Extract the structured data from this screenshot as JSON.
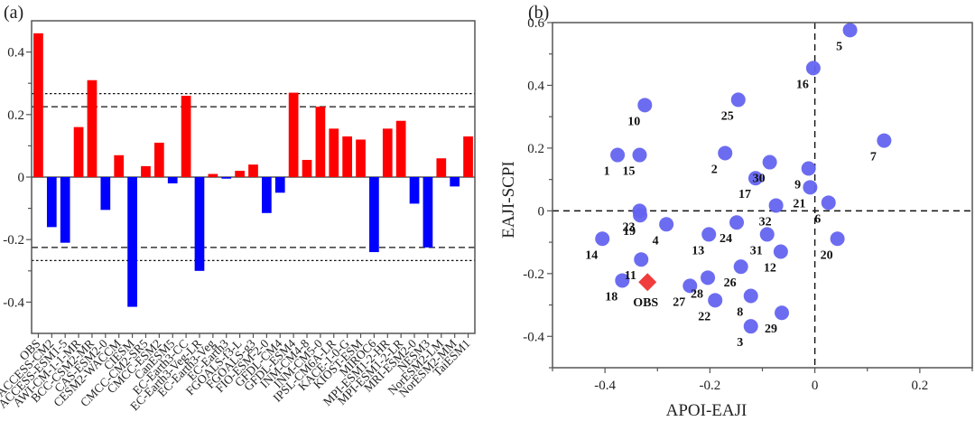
{
  "chart_data": [
    {
      "type": "bar",
      "panel_label": "(a)",
      "title": "",
      "xlabel": "",
      "ylabel": "",
      "ylim": [
        -0.5,
        0.5
      ],
      "yticks": [
        -0.4,
        -0.2,
        0,
        0.2,
        0.4
      ],
      "ytick_labels": [
        "-0.4",
        "-0.2",
        "0",
        "0.2",
        "0.4"
      ],
      "positive_color": "#ff0000",
      "negative_color": "#0000ff",
      "categories": [
        "OBS",
        "ACCESS-CM2",
        "ACCESS-ESM1-5",
        "AWI-CM-1-1-MR",
        "BCC-CSM2-MR",
        "CAS-ESM2-0",
        "CESM2-WACCM",
        "CIESM",
        "CMCC-CM2-SR5",
        "CMCC-ESM2",
        "CanESM5",
        "EC-Earth3-CC",
        "EC-Earth3-Veg-LR",
        "EC-Earth3-Veg",
        "EC-Earth3",
        "FGOALS-f3-L",
        "FGOALS-g3",
        "FIO-ESM-2-0",
        "GFDL-CM4",
        "GFDL-ESM4",
        "INM-CM4-8",
        "INM-CM5-0",
        "IPSL-CM6A-LR",
        "KACE-1-0-G",
        "KIOST-ESM",
        "MIROC6",
        "MPI-ESM1-2-HR",
        "MPI-ESM1-2-LR",
        "MRI-ESM2-0",
        "NESM3",
        "NorESM2-LM",
        "NorESM2-MM",
        "TaiESM1"
      ],
      "values": [
        0.46,
        -0.16,
        -0.21,
        0.16,
        0.31,
        -0.105,
        0.07,
        -0.415,
        0.035,
        0.11,
        -0.02,
        0.26,
        -0.3,
        0.01,
        -0.005,
        0.02,
        0.04,
        -0.115,
        -0.05,
        0.27,
        0.055,
        0.225,
        0.155,
        0.13,
        0.12,
        -0.24,
        0.155,
        0.18,
        -0.085,
        -0.225,
        0.06,
        -0.03,
        0.13
      ],
      "reference_lines": [
        {
          "style": "dashed",
          "value": 0.225
        },
        {
          "style": "dotted",
          "value": 0.267
        },
        {
          "style": "dashed",
          "value": -0.225
        },
        {
          "style": "dotted",
          "value": -0.267
        }
      ]
    },
    {
      "type": "scatter",
      "panel_label": "(b)",
      "title": "",
      "xlabel": "APOI-EAJI",
      "ylabel": "EAJI-SCPI",
      "xlim": [
        -0.5,
        0.3
      ],
      "ylim": [
        -0.5,
        0.6
      ],
      "xticks": [
        -0.4,
        -0.2,
        0,
        0.2
      ],
      "xtick_labels": [
        "-0.4",
        "-0.2",
        "0",
        "0.2"
      ],
      "yticks": [
        -0.4,
        -0.2,
        0,
        0.2,
        0.4,
        0.6
      ],
      "ytick_labels": [
        "-0.4",
        "-0.2",
        "0",
        "0.2",
        "0.4",
        "0.6"
      ],
      "point_color": "#6464f0",
      "obs_color": "#f03c3c",
      "reference_lines": [
        {
          "axis": "x",
          "value": 0,
          "style": "dashed"
        },
        {
          "axis": "y",
          "value": 0,
          "style": "dashed"
        }
      ],
      "points": [
        {
          "label": "1",
          "x": -0.376,
          "y": 0.178
        },
        {
          "label": "2",
          "x": -0.171,
          "y": 0.184
        },
        {
          "label": "3",
          "x": -0.122,
          "y": -0.368
        },
        {
          "label": "4",
          "x": -0.283,
          "y": -0.043
        },
        {
          "label": "5",
          "x": 0.067,
          "y": 0.576
        },
        {
          "label": "6",
          "x": 0.026,
          "y": 0.026
        },
        {
          "label": "7",
          "x": 0.132,
          "y": 0.224
        },
        {
          "label": "8",
          "x": -0.122,
          "y": -0.271
        },
        {
          "label": "9",
          "x": -0.012,
          "y": 0.135
        },
        {
          "label": "10",
          "x": -0.324,
          "y": 0.337
        },
        {
          "label": "11",
          "x": -0.331,
          "y": -0.155
        },
        {
          "label": "12",
          "x": -0.065,
          "y": -0.13
        },
        {
          "label": "13",
          "x": -0.202,
          "y": -0.075
        },
        {
          "label": "14",
          "x": -0.405,
          "y": -0.089
        },
        {
          "label": "15",
          "x": -0.334,
          "y": 0.178
        },
        {
          "label": "16",
          "x": -0.003,
          "y": 0.455
        },
        {
          "label": "17",
          "x": -0.113,
          "y": 0.104
        },
        {
          "label": "18",
          "x": -0.367,
          "y": -0.222
        },
        {
          "label": "19",
          "x": -0.333,
          "y": -0.014
        },
        {
          "label": "20",
          "x": 0.043,
          "y": -0.089
        },
        {
          "label": "21",
          "x": -0.009,
          "y": 0.075
        },
        {
          "label": "22",
          "x": -0.19,
          "y": -0.285
        },
        {
          "label": "23",
          "x": -0.334,
          "y": 0.0
        },
        {
          "label": "24",
          "x": -0.149,
          "y": -0.037
        },
        {
          "label": "25",
          "x": -0.146,
          "y": 0.354
        },
        {
          "label": "26",
          "x": -0.141,
          "y": -0.178
        },
        {
          "label": "27",
          "x": -0.238,
          "y": -0.239
        },
        {
          "label": "28",
          "x": -0.204,
          "y": -0.213
        },
        {
          "label": "29",
          "x": -0.063,
          "y": -0.325
        },
        {
          "label": "30",
          "x": -0.086,
          "y": 0.155
        },
        {
          "label": "31",
          "x": -0.091,
          "y": -0.075
        },
        {
          "label": "32",
          "x": -0.074,
          "y": 0.017
        }
      ],
      "obs": {
        "label": "OBS",
        "x": -0.319,
        "y": -0.227
      }
    }
  ]
}
